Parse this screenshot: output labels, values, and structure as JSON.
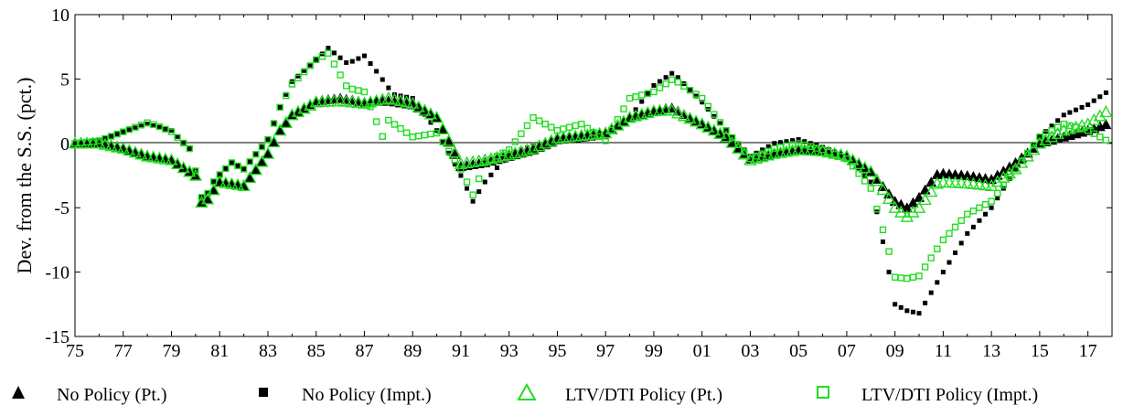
{
  "chart_data": {
    "type": "scatter",
    "title": "",
    "xlabel": "",
    "ylabel": "Dev. from the S.S. (pct.)",
    "xlim": [
      1975.0,
      2018.0
    ],
    "ylim": [
      -15,
      10
    ],
    "y_ticks": [
      10,
      5,
      0,
      -5,
      -10,
      -15
    ],
    "y_tick_labels": [
      "10",
      "5",
      "0",
      "-5",
      "-10",
      "-15"
    ],
    "x_ticks": [
      1975,
      1977,
      1979,
      1981,
      1983,
      1985,
      1987,
      1989,
      1991,
      1993,
      1995,
      1997,
      1999,
      2001,
      2003,
      2005,
      2007,
      2009,
      2011,
      2013,
      2015,
      2017
    ],
    "x_tick_labels": [
      "75",
      "77",
      "79",
      "81",
      "83",
      "85",
      "87",
      "89",
      "91",
      "93",
      "95",
      "97",
      "99",
      "01",
      "03",
      "05",
      "07",
      "09",
      "11",
      "13",
      "15",
      "17"
    ],
    "zero_line": true,
    "grid": false,
    "legend_position": "bottom",
    "anchors": {
      "no_policy_pt": [
        [
          1975,
          0
        ],
        [
          1976,
          0
        ],
        [
          1977,
          -0.4
        ],
        [
          1978,
          -1
        ],
        [
          1979,
          -1.3
        ],
        [
          1980,
          -2.5
        ],
        [
          1980.3,
          -5
        ],
        [
          1980.6,
          -4
        ],
        [
          1981,
          -3
        ],
        [
          1982,
          -3.3
        ],
        [
          1983,
          -0.8
        ],
        [
          1983.5,
          1
        ],
        [
          1984,
          2.2
        ],
        [
          1985,
          3.3
        ],
        [
          1986,
          3.5
        ],
        [
          1987,
          3.2
        ],
        [
          1988,
          3.3
        ],
        [
          1989,
          3
        ],
        [
          1990,
          2
        ],
        [
          1991,
          -1.8
        ],
        [
          1992,
          -1.5
        ],
        [
          1993,
          -1
        ],
        [
          1994,
          -0.5
        ],
        [
          1995,
          0.3
        ],
        [
          1996,
          0.5
        ],
        [
          1997,
          0.8
        ],
        [
          1998,
          2
        ],
        [
          1999,
          2.5
        ],
        [
          1999.7,
          2.8
        ],
        [
          2001,
          1.5
        ],
        [
          2002,
          0.5
        ],
        [
          2003,
          -1.2
        ],
        [
          2004,
          -0.8
        ],
        [
          2005,
          -0.5
        ],
        [
          2006,
          -0.6
        ],
        [
          2007,
          -1
        ],
        [
          2008,
          -2.2
        ],
        [
          2009,
          -4.5
        ],
        [
          2009.5,
          -5
        ],
        [
          2010,
          -4.2
        ],
        [
          2010.8,
          -2.3
        ],
        [
          2012,
          -2.5
        ],
        [
          2013,
          -2.8
        ],
        [
          2014,
          -1.5
        ],
        [
          2015,
          0
        ],
        [
          2016,
          0.5
        ],
        [
          2017,
          1
        ],
        [
          2017.8,
          1.5
        ]
      ],
      "no_policy_impt": [
        [
          1975,
          0
        ],
        [
          1976,
          0.2
        ],
        [
          1977,
          0.9
        ],
        [
          1978,
          1.5
        ],
        [
          1979,
          1
        ],
        [
          1979.8,
          -0.5
        ],
        [
          1980.3,
          -4.6
        ],
        [
          1980.8,
          -2.8
        ],
        [
          1981.5,
          -1.5
        ],
        [
          1982,
          -2
        ],
        [
          1983,
          0.3
        ],
        [
          1983.5,
          2.8
        ],
        [
          1984,
          4.8
        ],
        [
          1985,
          6.5
        ],
        [
          1985.5,
          7.4
        ],
        [
          1986.3,
          6.2
        ],
        [
          1987,
          6.8
        ],
        [
          1987.5,
          5.6
        ],
        [
          1988.2,
          3.8
        ],
        [
          1989,
          3.5
        ],
        [
          1990,
          1
        ],
        [
          1991,
          -2.5
        ],
        [
          1991.5,
          -4.5
        ],
        [
          1992,
          -3
        ],
        [
          1993,
          -0.8
        ],
        [
          1994,
          -0.2
        ],
        [
          1995,
          0.3
        ],
        [
          1996,
          0.3
        ],
        [
          1997,
          0.5
        ],
        [
          1998,
          2
        ],
        [
          1999,
          4.5
        ],
        [
          1999.8,
          5.5
        ],
        [
          2001,
          3.2
        ],
        [
          2002,
          1
        ],
        [
          2003,
          -1
        ],
        [
          2004,
          0
        ],
        [
          2005,
          0.3
        ],
        [
          2006,
          -0.3
        ],
        [
          2007,
          -1
        ],
        [
          2008,
          -3
        ],
        [
          2008.7,
          -9.5
        ],
        [
          2009,
          -12.5
        ],
        [
          2009.5,
          -13
        ],
        [
          2010,
          -13.2
        ],
        [
          2011,
          -10
        ],
        [
          2012,
          -7
        ],
        [
          2013,
          -5
        ],
        [
          2014,
          -2
        ],
        [
          2015,
          0.5
        ],
        [
          2016,
          2.2
        ],
        [
          2017,
          3
        ],
        [
          2017.8,
          4
        ]
      ],
      "ltv_dti_policy_pt": [
        [
          1975,
          0
        ],
        [
          1976,
          0
        ],
        [
          1977,
          -0.4
        ],
        [
          1978,
          -1
        ],
        [
          1979,
          -1.3
        ],
        [
          1980,
          -2.5
        ],
        [
          1980.3,
          -5
        ],
        [
          1980.6,
          -4
        ],
        [
          1981,
          -3
        ],
        [
          1982,
          -3.3
        ],
        [
          1983,
          -0.8
        ],
        [
          1983.5,
          1
        ],
        [
          1984,
          2.2
        ],
        [
          1985,
          3.2
        ],
        [
          1986,
          3.3
        ],
        [
          1987,
          3.1
        ],
        [
          1988,
          3.5
        ],
        [
          1989,
          3.1
        ],
        [
          1990,
          2
        ],
        [
          1991,
          -1.6
        ],
        [
          1992,
          -1.3
        ],
        [
          1993,
          -0.9
        ],
        [
          1994,
          -0.4
        ],
        [
          1995,
          0.4
        ],
        [
          1996,
          0.6
        ],
        [
          1997,
          0.8
        ],
        [
          1998,
          2
        ],
        [
          1999,
          2.5
        ],
        [
          1999.7,
          2.6
        ],
        [
          2001,
          1.5
        ],
        [
          2002,
          0.5
        ],
        [
          2003,
          -1.3
        ],
        [
          2004,
          -0.8
        ],
        [
          2005,
          -0.5
        ],
        [
          2006,
          -0.6
        ],
        [
          2007,
          -1
        ],
        [
          2008,
          -2.2
        ],
        [
          2009,
          -5
        ],
        [
          2009.5,
          -5.7
        ],
        [
          2010,
          -5
        ],
        [
          2010.8,
          -3
        ],
        [
          2012,
          -3.1
        ],
        [
          2013,
          -3.3
        ],
        [
          2014,
          -2
        ],
        [
          2015,
          0
        ],
        [
          2016,
          1
        ],
        [
          2017,
          1.5
        ],
        [
          2017.8,
          2.5
        ]
      ],
      "ltv_dti_policy_impt": [
        [
          1975,
          0
        ],
        [
          1976,
          0.2
        ],
        [
          1977,
          0.9
        ],
        [
          1978,
          1.6
        ],
        [
          1978.5,
          1.3
        ],
        [
          1979,
          0.9
        ],
        [
          1979.8,
          -0.5
        ],
        [
          1980.3,
          -4.6
        ],
        [
          1980.8,
          -2.8
        ],
        [
          1981.5,
          -1.5
        ],
        [
          1982,
          -2
        ],
        [
          1983,
          0.3
        ],
        [
          1983.5,
          2.8
        ],
        [
          1984,
          4.6
        ],
        [
          1985,
          6.5
        ],
        [
          1985.5,
          7
        ],
        [
          1986.3,
          4.3
        ],
        [
          1987,
          4
        ],
        [
          1987.8,
          0.3
        ],
        [
          1988,
          1.8
        ],
        [
          1989,
          0.5
        ],
        [
          1990,
          0.8
        ],
        [
          1991,
          -2
        ],
        [
          1991.5,
          -4
        ],
        [
          1992,
          -1.5
        ],
        [
          1993,
          -0.5
        ],
        [
          1994,
          2
        ],
        [
          1995,
          1
        ],
        [
          1996,
          1.5
        ],
        [
          1997,
          0.2
        ],
        [
          1998,
          3.5
        ],
        [
          1999,
          4
        ],
        [
          1999.8,
          5
        ],
        [
          2001,
          3.5
        ],
        [
          2002,
          1
        ],
        [
          2003,
          -1.2
        ],
        [
          2004,
          -0.4
        ],
        [
          2005,
          0
        ],
        [
          2006,
          -0.5
        ],
        [
          2007,
          -1.2
        ],
        [
          2008,
          -3.5
        ],
        [
          2008.7,
          -8
        ],
        [
          2009,
          -10.4
        ],
        [
          2009.5,
          -10.5
        ],
        [
          2010,
          -10.3
        ],
        [
          2011,
          -7.5
        ],
        [
          2012,
          -5.5
        ],
        [
          2013,
          -4.5
        ],
        [
          2014,
          -2
        ],
        [
          2015,
          0.5
        ],
        [
          2016,
          1.5
        ],
        [
          2017,
          1
        ],
        [
          2017.8,
          0.2
        ]
      ]
    },
    "series": [
      {
        "name": "No Policy (Pt.)",
        "key": "no_policy_pt",
        "marker": "triangle-filled",
        "color": "#000000"
      },
      {
        "name": "No Policy (Impt.)",
        "key": "no_policy_impt",
        "marker": "square-filled",
        "color": "#000000"
      },
      {
        "name": "LTV/DTI Policy (Pt.)",
        "key": "ltv_dti_policy_pt",
        "marker": "triangle-open",
        "color": "#22dd22"
      },
      {
        "name": "LTV/DTI Policy (Impt.)",
        "key": "ltv_dti_policy_impt",
        "marker": "square-open",
        "color": "#22dd22"
      }
    ]
  },
  "legend": {
    "items": [
      {
        "label": "No Policy (Pt.)",
        "icon": "filled-triangle"
      },
      {
        "label": "No Policy (Impt.)",
        "icon": "filled-square"
      },
      {
        "label": "LTV/DTI Policy (Pt.)",
        "icon": "open-triangle"
      },
      {
        "label": "LTV/DTI Policy (Impt.)",
        "icon": "open-square"
      }
    ]
  }
}
